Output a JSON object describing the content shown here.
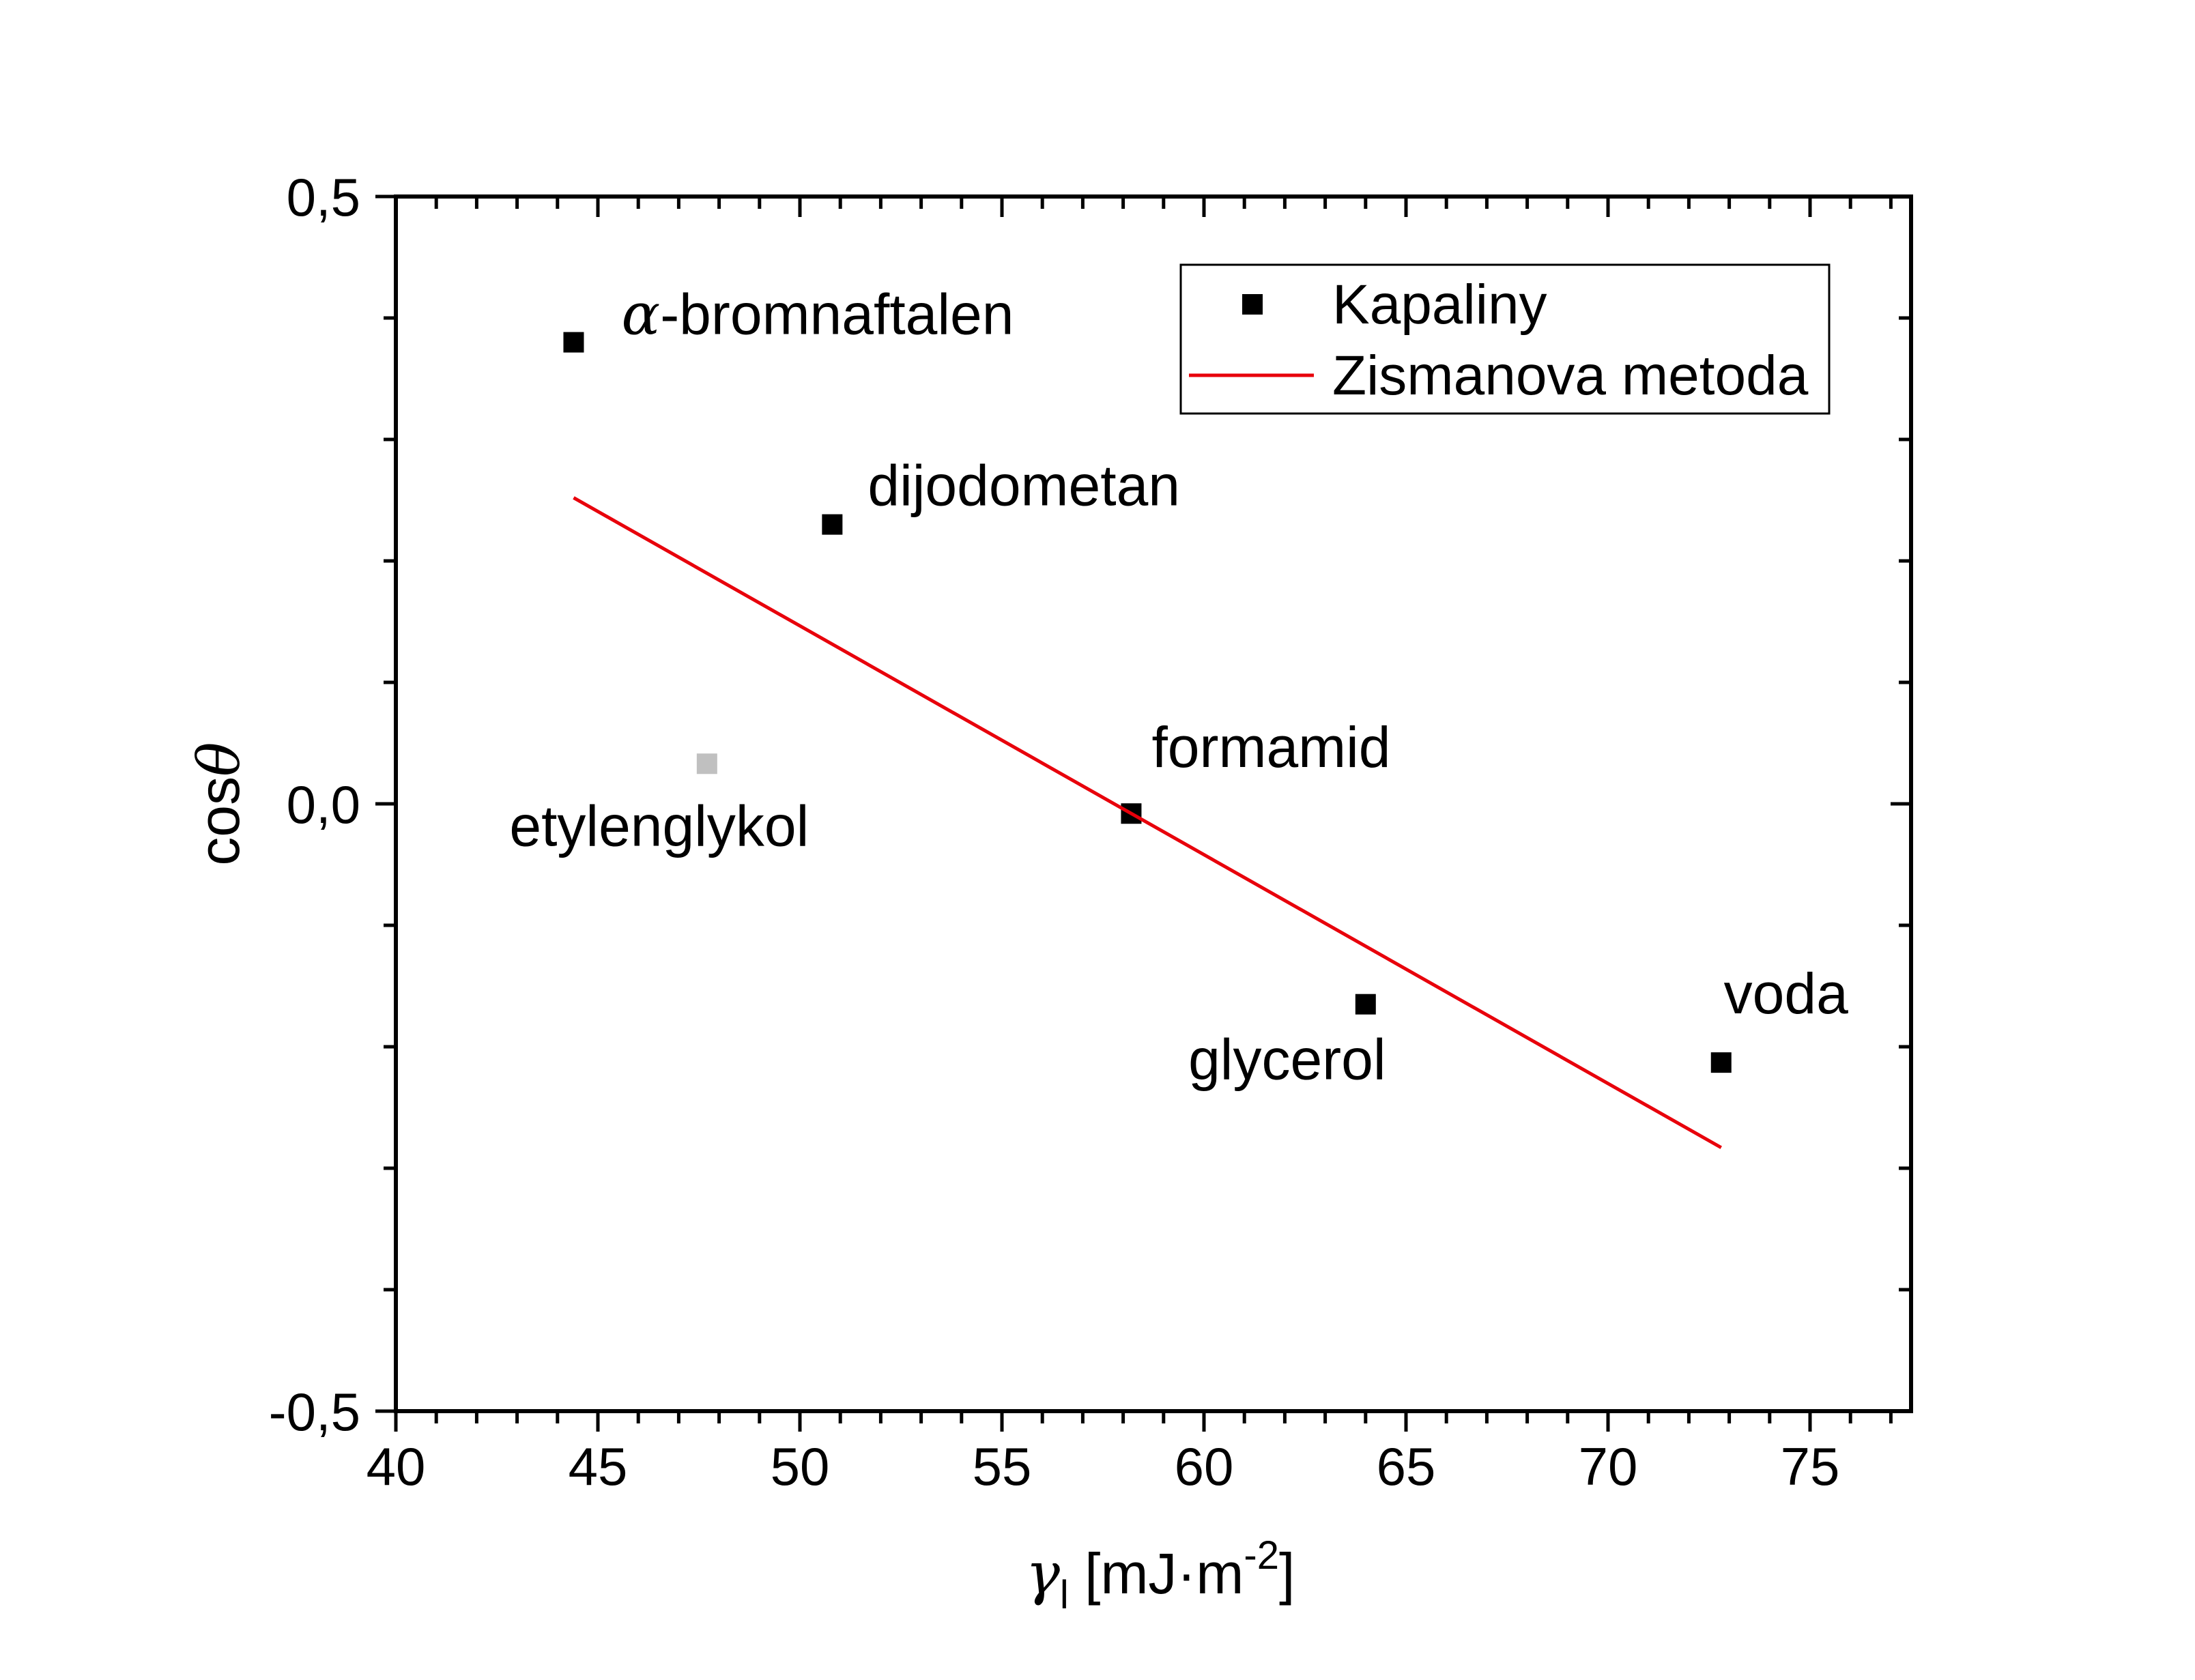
{
  "chart_data": {
    "type": "scatter",
    "xlabel": {
      "symbol": "γ",
      "subscript": "l",
      "unit": "[mJ·m",
      "exponent": "-2",
      "close": "]"
    },
    "ylabel": {
      "prefix": "cos",
      "symbol": "θ"
    },
    "xlim": [
      40,
      77.5
    ],
    "ylim": [
      -0.5,
      0.5
    ],
    "xticks": [
      40,
      45,
      50,
      55,
      60,
      65,
      70,
      75
    ],
    "xtick_labels": [
      "40",
      "45",
      "50",
      "55",
      "60",
      "65",
      "70",
      "75"
    ],
    "yticks": [
      -0.5,
      0.0,
      0.5
    ],
    "ytick_labels": [
      "-0,5",
      "0,0",
      "0,5"
    ],
    "grid": false,
    "legend": {
      "position": "top-right",
      "entries": [
        {
          "label": "Kapaliny",
          "kind": "marker",
          "color": "#000000"
        },
        {
          "label": "Zismanova metoda",
          "kind": "line",
          "color": "#e8000b"
        }
      ]
    },
    "series": [
      {
        "name": "Kapaliny",
        "kind": "scatter",
        "color": "#000000",
        "points": [
          {
            "x": 44.4,
            "y": 0.38,
            "label_prefix": "α",
            "label": "-bromnaftalen",
            "color": "#000000"
          },
          {
            "x": 50.8,
            "y": 0.23,
            "label": "dijodometan",
            "color": "#000000"
          },
          {
            "x": 47.7,
            "y": 0.033,
            "label": "etylenglykol",
            "color": "#c0c0c0"
          },
          {
            "x": 58.2,
            "y": -0.008,
            "label": "formamid",
            "color": "#000000"
          },
          {
            "x": 64.0,
            "y": -0.165,
            "label": "glycerol",
            "color": "#000000"
          },
          {
            "x": 72.8,
            "y": -0.213,
            "label": "voda",
            "color": "#000000"
          }
        ]
      },
      {
        "name": "Zismanova metoda",
        "kind": "line",
        "color": "#e8000b",
        "points": [
          {
            "x": 44.4,
            "y": 0.252
          },
          {
            "x": 72.8,
            "y": -0.283
          }
        ]
      }
    ]
  }
}
